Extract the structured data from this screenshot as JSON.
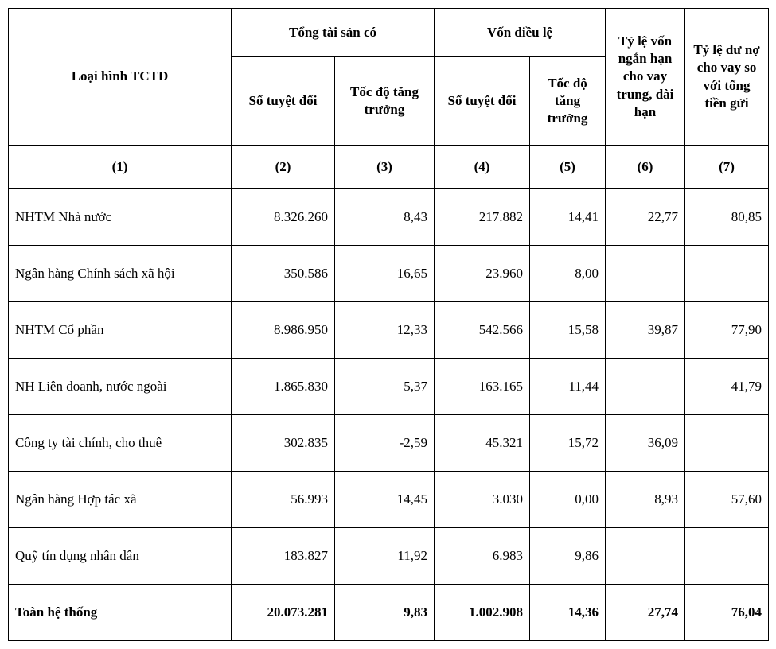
{
  "headers": {
    "col1": "Loại hình TCTD",
    "group_assets": "Tổng tài sản có",
    "group_capital": "Vốn điều lệ",
    "col2": "Số tuyệt đối",
    "col3": "Tốc độ tăng trưởng",
    "col4": "Số tuyệt đối",
    "col5": "Tốc độ tăng trưởng",
    "col6": "Tỷ lệ vốn ngắn hạn cho vay trung, dài hạn",
    "col7": "Tỷ lệ dư nợ cho vay so với tổng tiền gửi"
  },
  "colnums": {
    "c1": "(1)",
    "c2": "(2)",
    "c3": "(3)",
    "c4": "(4)",
    "c5": "(5)",
    "c6": "(6)",
    "c7": "(7)"
  },
  "rows": [
    {
      "label": "NHTM Nhà nước",
      "c2": "8.326.260",
      "c3": "8,43",
      "c4": "217.882",
      "c5": "14,41",
      "c6": "22,77",
      "c7": "80,85"
    },
    {
      "label": "Ngân hàng Chính sách xã hội",
      "c2": "350.586",
      "c3": "16,65",
      "c4": "23.960",
      "c5": "8,00",
      "c6": "",
      "c7": ""
    },
    {
      "label": "NHTM Cổ phần",
      "c2": "8.986.950",
      "c3": "12,33",
      "c4": "542.566",
      "c5": "15,58",
      "c6": "39,87",
      "c7": "77,90"
    },
    {
      "label": "NH Liên doanh, nước ngoài",
      "c2": "1.865.830",
      "c3": "5,37",
      "c4": "163.165",
      "c5": "11,44",
      "c6": "",
      "c7": "41,79"
    },
    {
      "label": "Công ty tài chính, cho thuê",
      "c2": "302.835",
      "c3": "-2,59",
      "c4": "45.321",
      "c5": "15,72",
      "c6": "36,09",
      "c7": ""
    },
    {
      "label": "Ngân hàng Hợp tác xã",
      "c2": "56.993",
      "c3": "14,45",
      "c4": "3.030",
      "c5": "0,00",
      "c6": "8,93",
      "c7": "57,60"
    },
    {
      "label": "Quỹ tín dụng nhân dân",
      "c2": "183.827",
      "c3": "11,92",
      "c4": "6.983",
      "c5": "9,86",
      "c6": "",
      "c7": ""
    }
  ],
  "total": {
    "label": "Toàn hệ thống",
    "c2": "20.073.281",
    "c3": "9,83",
    "c4": "1.002.908",
    "c5": "14,36",
    "c6": "27,74",
    "c7": "76,04"
  }
}
